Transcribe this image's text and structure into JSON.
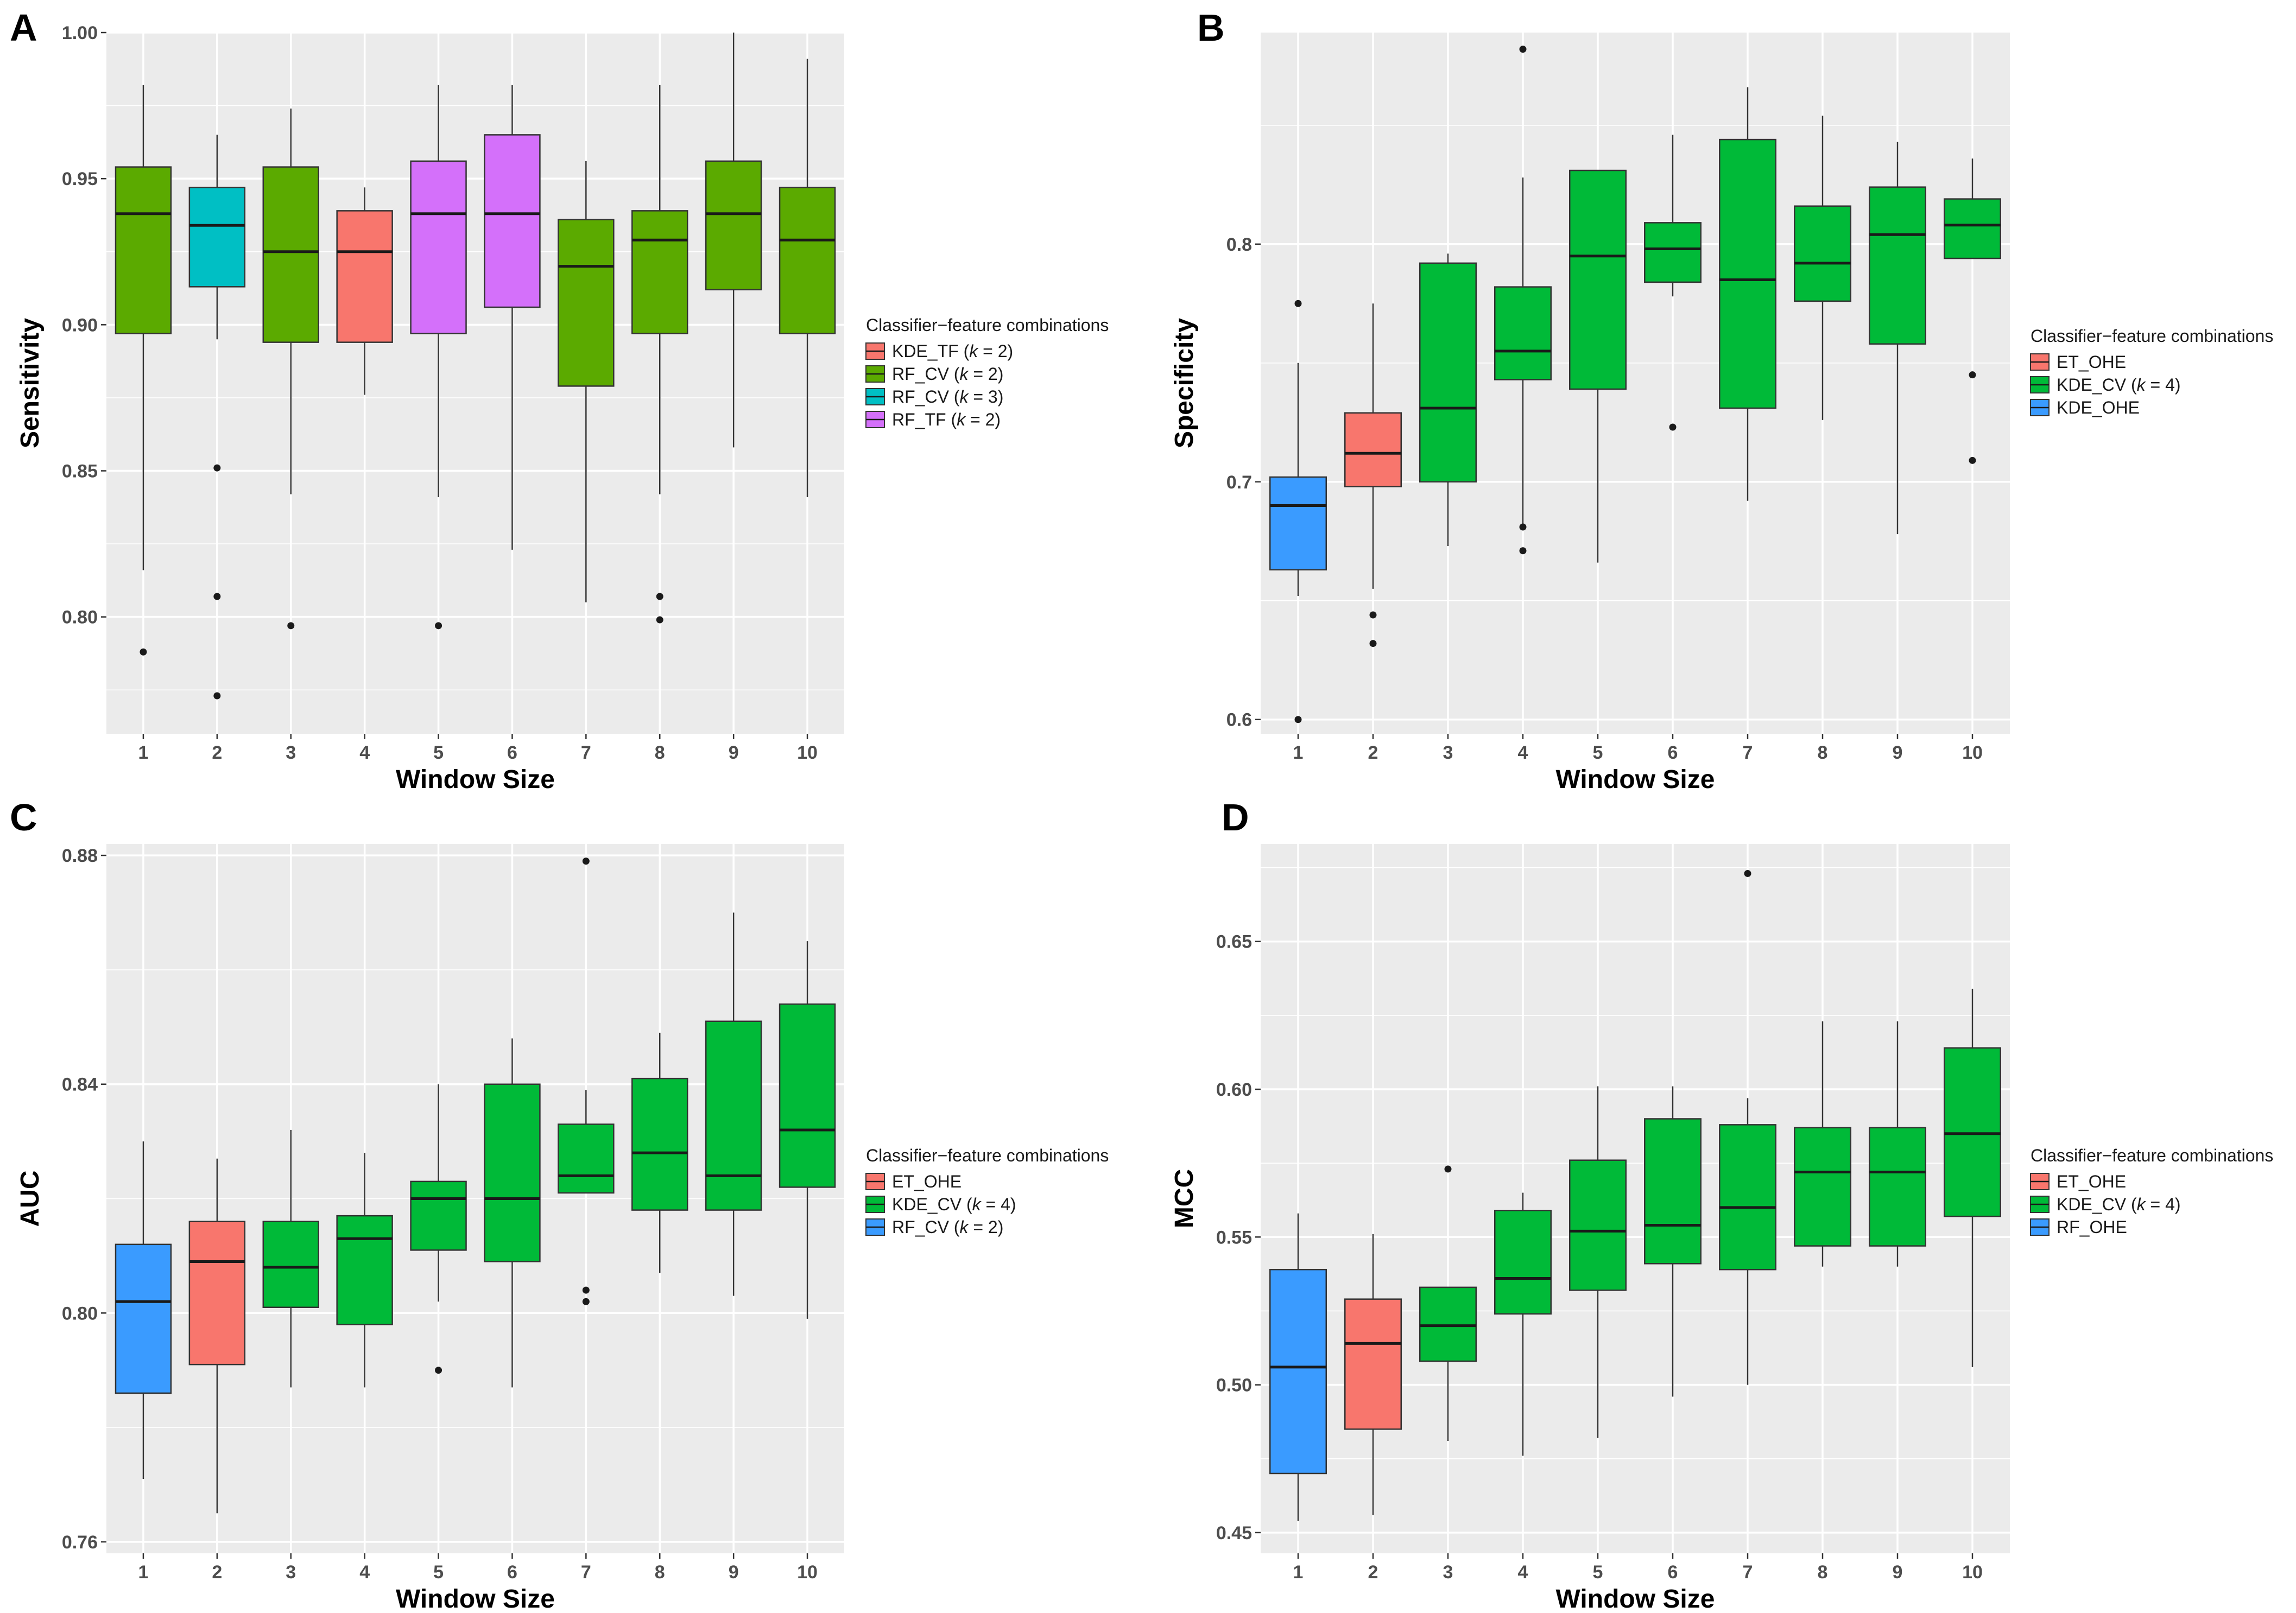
{
  "colors": {
    "red": "#F8766D",
    "olive": "#5BAA00",
    "teal": "#00BFC4",
    "purple": "#D470FA",
    "green": "#00BA38",
    "blue": "#3A9BFF",
    "panel_bg": "#EBEBEB",
    "grid": "#FFFFFF"
  },
  "chart_data": [
    {
      "panel": "A",
      "type": "box",
      "title": "",
      "xlabel": "Window Size",
      "ylabel": "Sensitivity",
      "categories": [
        "1",
        "2",
        "3",
        "4",
        "5",
        "6",
        "7",
        "8",
        "9",
        "10"
      ],
      "ylim": [
        0.76,
        1.0
      ],
      "yticks": [
        "0.80",
        "0.85",
        "0.90",
        "0.95",
        "1.00"
      ],
      "legend": {
        "title": "Classifier−feature combinations",
        "position": "right",
        "entries": [
          {
            "label": "KDE_TF (",
            "k": "k",
            "suffix": " = 2)",
            "color": "red"
          },
          {
            "label": "RF_CV (",
            "k": "k",
            "suffix": " = 2)",
            "color": "olive"
          },
          {
            "label": "RF_CV (",
            "k": "k",
            "suffix": " = 3)",
            "color": "teal"
          },
          {
            "label": "RF_TF (",
            "k": "k",
            "suffix": " = 2)",
            "color": "purple"
          }
        ]
      },
      "boxes": [
        {
          "x": "1",
          "color": "olive",
          "min": 0.816,
          "q1": 0.897,
          "median": 0.938,
          "q3": 0.954,
          "max": 0.982,
          "outliers": [
            0.788
          ]
        },
        {
          "x": "2",
          "color": "teal",
          "min": 0.895,
          "q1": 0.913,
          "median": 0.934,
          "q3": 0.947,
          "max": 0.965,
          "outliers": [
            0.851,
            0.807,
            0.773
          ]
        },
        {
          "x": "3",
          "color": "olive",
          "min": 0.842,
          "q1": 0.894,
          "median": 0.925,
          "q3": 0.954,
          "max": 0.974,
          "outliers": [
            0.797
          ]
        },
        {
          "x": "4",
          "color": "red",
          "min": 0.876,
          "q1": 0.894,
          "median": 0.925,
          "q3": 0.939,
          "max": 0.947,
          "outliers": []
        },
        {
          "x": "5",
          "color": "purple",
          "min": 0.841,
          "q1": 0.897,
          "median": 0.938,
          "q3": 0.956,
          "max": 0.982,
          "outliers": [
            0.797
          ]
        },
        {
          "x": "6",
          "color": "purple",
          "min": 0.823,
          "q1": 0.906,
          "median": 0.938,
          "q3": 0.965,
          "max": 0.982,
          "outliers": []
        },
        {
          "x": "7",
          "color": "olive",
          "min": 0.805,
          "q1": 0.879,
          "median": 0.92,
          "q3": 0.936,
          "max": 0.956,
          "outliers": []
        },
        {
          "x": "8",
          "color": "olive",
          "min": 0.842,
          "q1": 0.897,
          "median": 0.929,
          "q3": 0.939,
          "max": 0.982,
          "outliers": [
            0.807,
            0.799
          ]
        },
        {
          "x": "9",
          "color": "olive",
          "min": 0.858,
          "q1": 0.912,
          "median": 0.938,
          "q3": 0.956,
          "max": 1.0,
          "outliers": []
        },
        {
          "x": "10",
          "color": "olive",
          "min": 0.841,
          "q1": 0.897,
          "median": 0.929,
          "q3": 0.947,
          "max": 0.991,
          "outliers": []
        }
      ]
    },
    {
      "panel": "B",
      "type": "box",
      "title": "",
      "xlabel": "Window Size",
      "ylabel": "Specificity",
      "categories": [
        "1",
        "2",
        "3",
        "4",
        "5",
        "6",
        "7",
        "8",
        "9",
        "10"
      ],
      "ylim": [
        0.594,
        0.889
      ],
      "yticks": [
        "0.6",
        "0.7",
        "0.8"
      ],
      "legend": {
        "title": "Classifier−feature combinations",
        "position": "right",
        "entries": [
          {
            "label": "ET_OHE",
            "k": "",
            "suffix": "",
            "color": "red"
          },
          {
            "label": "KDE_CV (",
            "k": "k",
            "suffix": " = 4)",
            "color": "green"
          },
          {
            "label": "KDE_OHE",
            "k": "",
            "suffix": "",
            "color": "blue"
          }
        ]
      },
      "boxes": [
        {
          "x": "1",
          "color": "blue",
          "min": 0.652,
          "q1": 0.663,
          "median": 0.69,
          "q3": 0.702,
          "max": 0.75,
          "outliers": [
            0.775,
            0.6
          ]
        },
        {
          "x": "2",
          "color": "red",
          "min": 0.655,
          "q1": 0.698,
          "median": 0.712,
          "q3": 0.729,
          "max": 0.775,
          "outliers": [
            0.644,
            0.632
          ]
        },
        {
          "x": "3",
          "color": "green",
          "min": 0.673,
          "q1": 0.7,
          "median": 0.731,
          "q3": 0.792,
          "max": 0.796,
          "outliers": []
        },
        {
          "x": "4",
          "color": "green",
          "min": 0.682,
          "q1": 0.743,
          "median": 0.755,
          "q3": 0.782,
          "max": 0.828,
          "outliers": [
            0.882,
            0.681,
            0.671
          ]
        },
        {
          "x": "5",
          "color": "green",
          "min": 0.666,
          "q1": 0.739,
          "median": 0.795,
          "q3": 0.831,
          "max": 0.831,
          "outliers": []
        },
        {
          "x": "6",
          "color": "green",
          "min": 0.778,
          "q1": 0.784,
          "median": 0.798,
          "q3": 0.809,
          "max": 0.846,
          "outliers": [
            0.723
          ]
        },
        {
          "x": "7",
          "color": "green",
          "min": 0.692,
          "q1": 0.731,
          "median": 0.785,
          "q3": 0.844,
          "max": 0.866,
          "outliers": []
        },
        {
          "x": "8",
          "color": "green",
          "min": 0.726,
          "q1": 0.776,
          "median": 0.792,
          "q3": 0.816,
          "max": 0.854,
          "outliers": []
        },
        {
          "x": "9",
          "color": "green",
          "min": 0.678,
          "q1": 0.758,
          "median": 0.804,
          "q3": 0.824,
          "max": 0.843,
          "outliers": []
        },
        {
          "x": "10",
          "color": "green",
          "min": 0.794,
          "q1": 0.794,
          "median": 0.808,
          "q3": 0.819,
          "max": 0.836,
          "outliers": [
            0.745,
            0.709
          ]
        }
      ]
    },
    {
      "panel": "C",
      "type": "box",
      "title": "",
      "xlabel": "Window Size",
      "ylabel": "AUC",
      "categories": [
        "1",
        "2",
        "3",
        "4",
        "5",
        "6",
        "7",
        "8",
        "9",
        "10"
      ],
      "ylim": [
        0.758,
        0.882
      ],
      "yticks": [
        "0.76",
        "0.80",
        "0.84",
        "0.88"
      ],
      "legend": {
        "title": "Classifier−feature combinations",
        "position": "right",
        "entries": [
          {
            "label": "ET_OHE",
            "k": "",
            "suffix": "",
            "color": "red"
          },
          {
            "label": "KDE_CV (",
            "k": "k",
            "suffix": " = 4)",
            "color": "green"
          },
          {
            "label": "RF_CV (",
            "k": "k",
            "suffix": " = 2)",
            "color": "blue"
          }
        ]
      },
      "boxes": [
        {
          "x": "1",
          "color": "blue",
          "min": 0.771,
          "q1": 0.786,
          "median": 0.802,
          "q3": 0.812,
          "max": 0.83,
          "outliers": []
        },
        {
          "x": "2",
          "color": "red",
          "min": 0.765,
          "q1": 0.791,
          "median": 0.809,
          "q3": 0.816,
          "max": 0.827,
          "outliers": []
        },
        {
          "x": "3",
          "color": "green",
          "min": 0.787,
          "q1": 0.801,
          "median": 0.808,
          "q3": 0.816,
          "max": 0.832,
          "outliers": []
        },
        {
          "x": "4",
          "color": "green",
          "min": 0.787,
          "q1": 0.798,
          "median": 0.813,
          "q3": 0.817,
          "max": 0.828,
          "outliers": []
        },
        {
          "x": "5",
          "color": "green",
          "min": 0.802,
          "q1": 0.811,
          "median": 0.82,
          "q3": 0.823,
          "max": 0.84,
          "outliers": [
            0.79
          ]
        },
        {
          "x": "6",
          "color": "green",
          "min": 0.787,
          "q1": 0.809,
          "median": 0.82,
          "q3": 0.84,
          "max": 0.848,
          "outliers": []
        },
        {
          "x": "7",
          "color": "green",
          "min": 0.821,
          "q1": 0.821,
          "median": 0.824,
          "q3": 0.833,
          "max": 0.839,
          "outliers": [
            0.879,
            0.804,
            0.802
          ]
        },
        {
          "x": "8",
          "color": "green",
          "min": 0.807,
          "q1": 0.818,
          "median": 0.828,
          "q3": 0.841,
          "max": 0.849,
          "outliers": []
        },
        {
          "x": "9",
          "color": "green",
          "min": 0.803,
          "q1": 0.818,
          "median": 0.824,
          "q3": 0.851,
          "max": 0.87,
          "outliers": []
        },
        {
          "x": "10",
          "color": "green",
          "min": 0.799,
          "q1": 0.822,
          "median": 0.832,
          "q3": 0.854,
          "max": 0.865,
          "outliers": []
        }
      ]
    },
    {
      "panel": "D",
      "type": "box",
      "title": "",
      "xlabel": "Window Size",
      "ylabel": "MCC",
      "categories": [
        "1",
        "2",
        "3",
        "4",
        "5",
        "6",
        "7",
        "8",
        "9",
        "10"
      ],
      "ylim": [
        0.443,
        0.683
      ],
      "yticks": [
        "0.45",
        "0.50",
        "0.55",
        "0.60",
        "0.65"
      ],
      "legend": {
        "title": "Classifier−feature combinations",
        "position": "right",
        "entries": [
          {
            "label": "ET_OHE",
            "k": "",
            "suffix": "",
            "color": "red"
          },
          {
            "label": "KDE_CV (",
            "k": "k",
            "suffix": " = 4)",
            "color": "green"
          },
          {
            "label": "RF_OHE",
            "k": "",
            "suffix": "",
            "color": "blue"
          }
        ]
      },
      "boxes": [
        {
          "x": "1",
          "color": "blue",
          "min": 0.454,
          "q1": 0.47,
          "median": 0.506,
          "q3": 0.539,
          "max": 0.558,
          "outliers": []
        },
        {
          "x": "2",
          "color": "red",
          "min": 0.456,
          "q1": 0.485,
          "median": 0.514,
          "q3": 0.529,
          "max": 0.551,
          "outliers": []
        },
        {
          "x": "3",
          "color": "green",
          "min": 0.481,
          "q1": 0.508,
          "median": 0.52,
          "q3": 0.533,
          "max": 0.533,
          "outliers": [
            0.573
          ]
        },
        {
          "x": "4",
          "color": "green",
          "min": 0.476,
          "q1": 0.524,
          "median": 0.536,
          "q3": 0.559,
          "max": 0.565,
          "outliers": []
        },
        {
          "x": "5",
          "color": "green",
          "min": 0.482,
          "q1": 0.532,
          "median": 0.552,
          "q3": 0.576,
          "max": 0.601,
          "outliers": []
        },
        {
          "x": "6",
          "color": "green",
          "min": 0.496,
          "q1": 0.541,
          "median": 0.554,
          "q3": 0.59,
          "max": 0.601,
          "outliers": []
        },
        {
          "x": "7",
          "color": "green",
          "min": 0.5,
          "q1": 0.539,
          "median": 0.56,
          "q3": 0.588,
          "max": 0.597,
          "outliers": [
            0.673
          ]
        },
        {
          "x": "8",
          "color": "green",
          "min": 0.54,
          "q1": 0.547,
          "median": 0.572,
          "q3": 0.587,
          "max": 0.623,
          "outliers": []
        },
        {
          "x": "9",
          "color": "green",
          "min": 0.54,
          "q1": 0.547,
          "median": 0.572,
          "q3": 0.587,
          "max": 0.623,
          "outliers": []
        },
        {
          "x": "10",
          "color": "green",
          "min": 0.506,
          "q1": 0.557,
          "median": 0.585,
          "q3": 0.614,
          "max": 0.634,
          "outliers": []
        }
      ]
    }
  ]
}
